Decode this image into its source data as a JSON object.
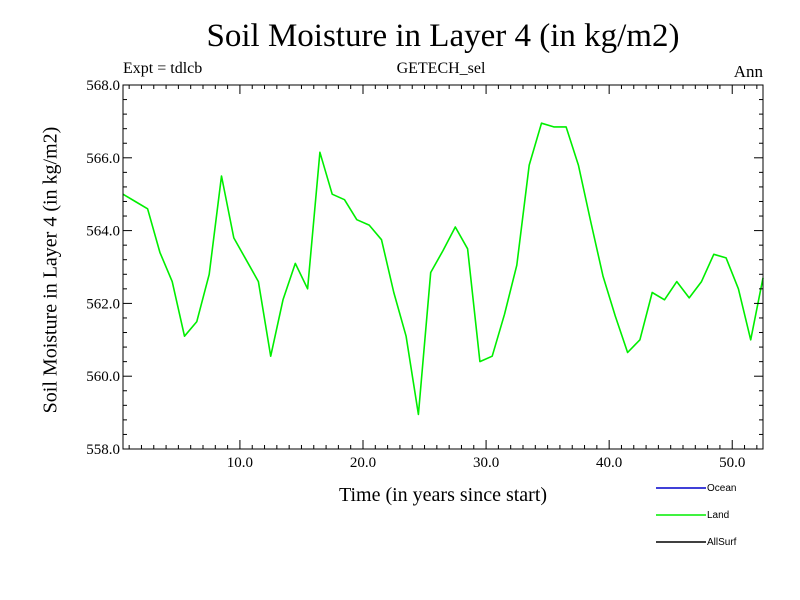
{
  "chart_data": {
    "type": "line",
    "title": "Soil Moisture in Layer 4 (in kg/m2)",
    "subtitle_left": "Expt = tdlcb",
    "subtitle_center": "GETECH_sel",
    "subtitle_right": "Ann",
    "xlabel": "Time (in years since start)",
    "ylabel": "Soil Moisture in Layer 4 (in kg/m2)",
    "xlim": [
      0.5,
      52.5
    ],
    "ylim": [
      558.0,
      568.0
    ],
    "x_ticks": [
      10,
      20,
      30,
      40,
      50
    ],
    "x_tick_labels": [
      "10.0",
      "20.0",
      "30.0",
      "40.0",
      "50.0"
    ],
    "y_ticks": [
      558,
      560,
      562,
      564,
      566,
      568
    ],
    "y_tick_labels": [
      "558.0",
      "560.0",
      "562.0",
      "564.0",
      "566.0",
      "568.0"
    ],
    "legend": [
      {
        "name": "Ocean",
        "color": "#0000cc"
      },
      {
        "name": "Land",
        "color": "#00ee00"
      },
      {
        "name": "AllSurf",
        "color": "#000000"
      }
    ],
    "series": [
      {
        "name": "Land",
        "color": "#00ee00",
        "x": [
          0.5,
          1.5,
          2.5,
          3.5,
          4.5,
          5.5,
          6.5,
          7.5,
          8.5,
          9.5,
          10.5,
          11.5,
          12.5,
          13.5,
          14.5,
          15.5,
          16.5,
          17.5,
          18.5,
          19.5,
          20.5,
          21.5,
          22.5,
          23.5,
          24.5,
          25.5,
          26.5,
          27.5,
          28.5,
          29.5,
          30.5,
          31.5,
          32.5,
          33.5,
          34.5,
          35.5,
          36.5,
          37.5,
          38.5,
          39.5,
          40.5,
          41.5,
          42.5,
          43.5,
          44.5,
          45.5,
          46.5,
          47.5,
          48.5,
          49.5,
          50.5,
          51.5,
          52.5
        ],
        "values": [
          565.0,
          564.8,
          564.6,
          563.4,
          562.6,
          561.1,
          561.5,
          562.8,
          565.5,
          563.8,
          563.2,
          562.6,
          560.55,
          562.1,
          563.1,
          562.4,
          566.15,
          565.0,
          564.85,
          564.3,
          564.15,
          563.75,
          562.3,
          561.1,
          558.95,
          562.85,
          563.45,
          564.1,
          563.5,
          560.4,
          560.55,
          561.7,
          563.05,
          565.8,
          566.95,
          566.85,
          566.85,
          565.8,
          564.25,
          562.75,
          561.65,
          560.65,
          561.0,
          562.3,
          562.1,
          562.6,
          562.15,
          562.6,
          563.35,
          563.25,
          562.4,
          561.0,
          562.7
        ]
      }
    ]
  }
}
